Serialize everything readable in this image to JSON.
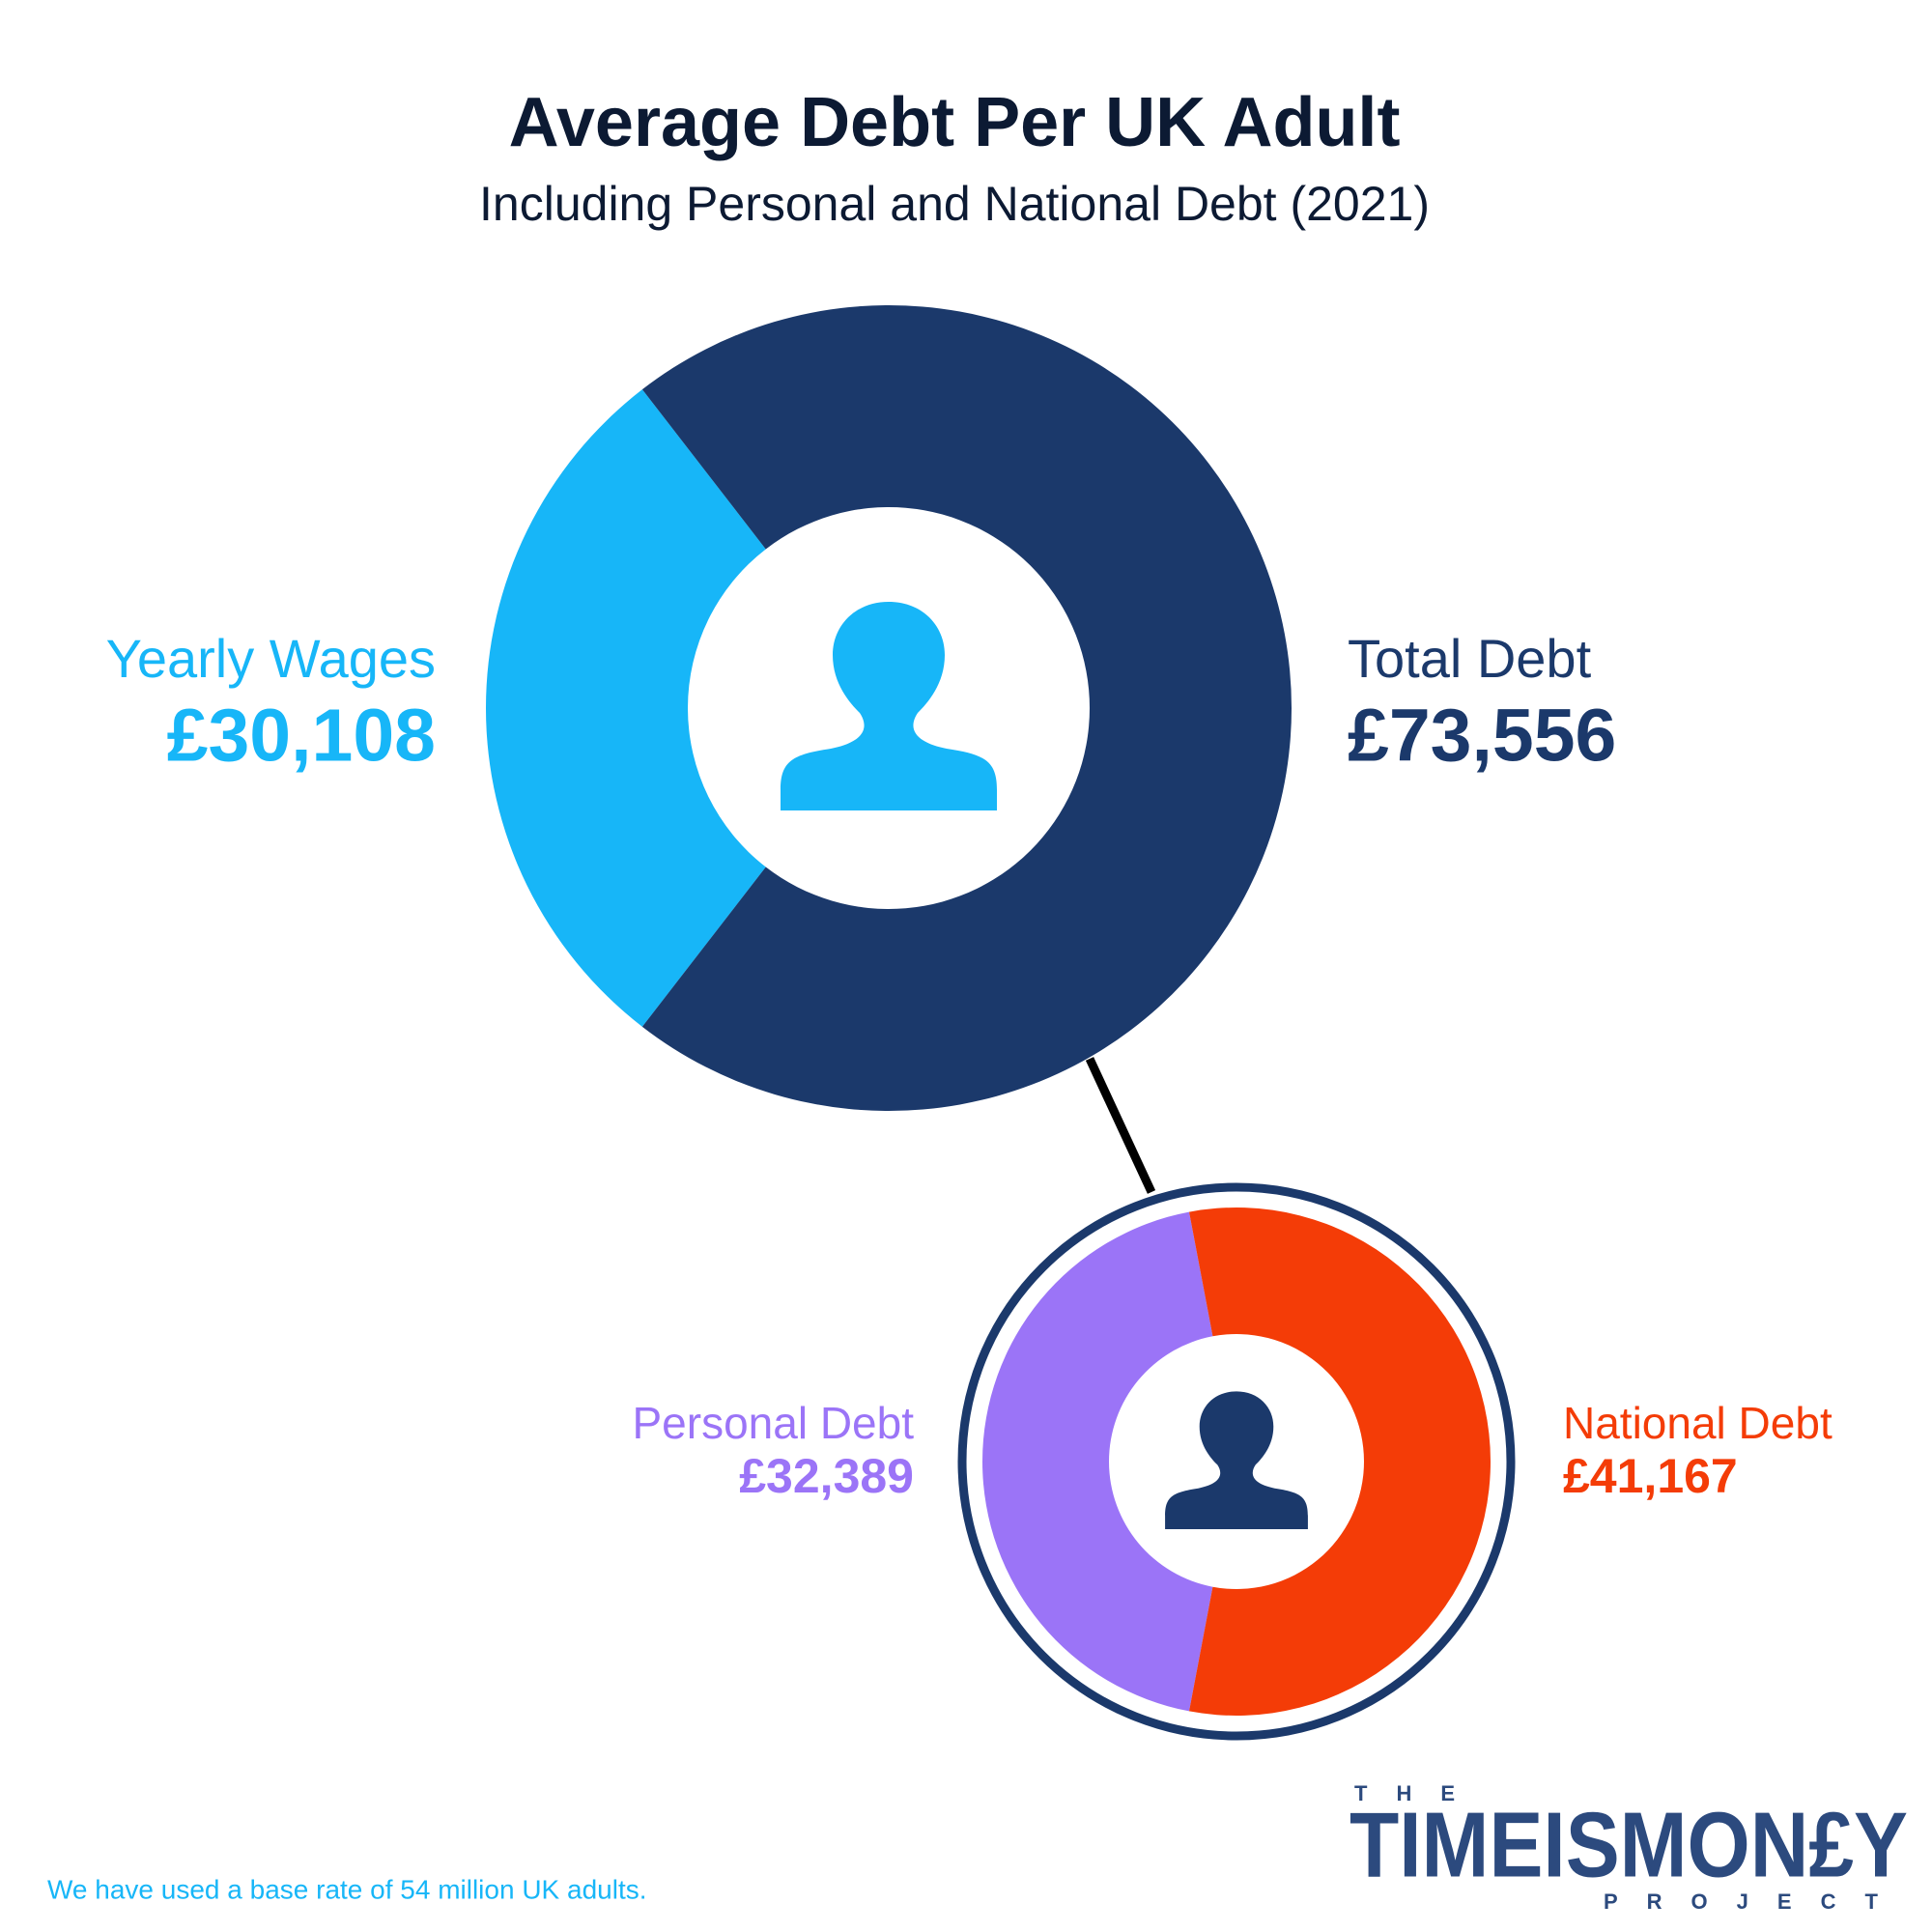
{
  "title": "Average Debt Per UK Adult",
  "subtitle": "Including Personal and National Debt (2021)",
  "footnote": "We have used a base rate of 54 million UK adults.",
  "logo": {
    "top": "THE",
    "main": "TIMEISMON£Y",
    "bottom": "PROJECT"
  },
  "chart_data": [
    {
      "type": "donut",
      "categories": [
        "Yearly Wages",
        "Total Debt"
      ],
      "values": [
        30108,
        73556
      ],
      "value_labels": [
        "£30,108",
        "£73,556"
      ],
      "colors": [
        "#17b6f8",
        "#1b396b"
      ]
    },
    {
      "type": "donut",
      "categories": [
        "Personal Debt",
        "National Debt"
      ],
      "values": [
        32389,
        41167
      ],
      "value_labels": [
        "£32,389",
        "£41,167"
      ],
      "colors": [
        "#9b74f7",
        "#f43c07"
      ]
    }
  ]
}
